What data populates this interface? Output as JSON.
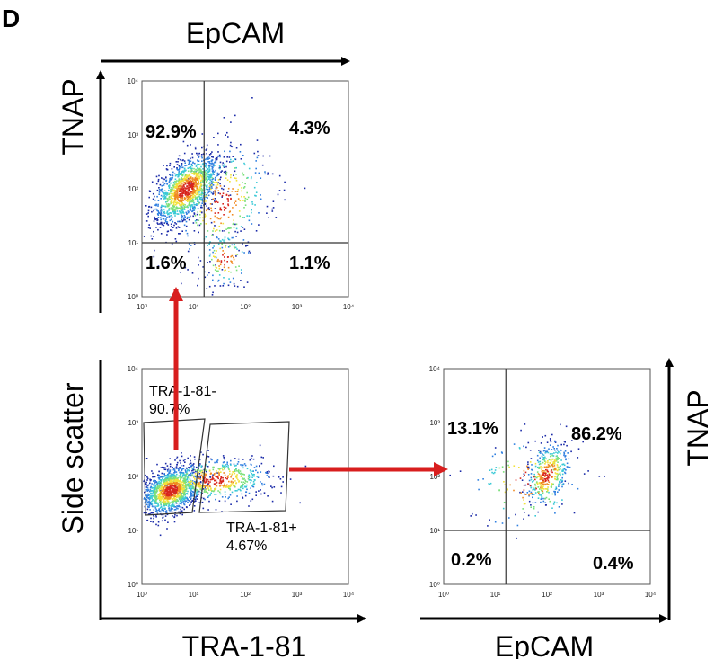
{
  "panel_letter": "D",
  "top_title": "EpCAM",
  "chart_data": [
    {
      "type": "scatter",
      "xlabel": "",
      "ylabel": "TNAP",
      "x_scale": "log",
      "y_scale": "log",
      "xlim": [
        1,
        10000
      ],
      "ylim": [
        1,
        10000
      ],
      "x_ticks": [
        "10⁰",
        "10¹",
        "10²",
        "10³",
        "10⁴"
      ],
      "y_ticks": [
        "10⁰",
        "10¹",
        "10²",
        "10³",
        "10⁴"
      ],
      "gate_x": 16,
      "gate_y": 10,
      "quadrants": {
        "top_left": "92.9%",
        "top_right": "4.3%",
        "bottom_left": "1.6%",
        "bottom_right": "1.1%"
      }
    },
    {
      "type": "scatter",
      "xlabel": "TRA-1-81",
      "ylabel": "Side scatter",
      "x_scale": "log",
      "y_scale": "log",
      "xlim": [
        1,
        10000
      ],
      "ylim": [
        1,
        10000
      ],
      "x_ticks": [
        "10⁰",
        "10¹",
        "10²",
        "10³",
        "10⁴"
      ],
      "y_ticks": [
        "10⁰",
        "10¹",
        "10²",
        "10³",
        "10⁴"
      ],
      "gates": [
        {
          "name": "TRA-1-81-",
          "value": "90.7%"
        },
        {
          "name": "TRA-1-81+",
          "value": "4.67%"
        }
      ]
    },
    {
      "type": "scatter",
      "xlabel": "EpCAM",
      "ylabel": "TNAP",
      "x_scale": "log",
      "y_scale": "log",
      "xlim": [
        1,
        10000
      ],
      "ylim": [
        1,
        10000
      ],
      "x_ticks": [
        "10⁰",
        "10¹",
        "10²",
        "10³",
        "10⁴"
      ],
      "y_ticks": [
        "10⁰",
        "10¹",
        "10²",
        "10³",
        "10⁴"
      ],
      "gate_x": 16,
      "gate_y": 10,
      "quadrants": {
        "top_left": "13.1%",
        "top_right": "86.2%",
        "bottom_left": "0.2%",
        "bottom_right": "0.4%"
      }
    }
  ],
  "colors": {
    "arrow": "#d81e1e",
    "axis": "#000000",
    "density": [
      "#1a2aa8",
      "#2f7fe0",
      "#39c9d6",
      "#7be07a",
      "#f2e23a",
      "#f08a22",
      "#d7261e"
    ]
  }
}
